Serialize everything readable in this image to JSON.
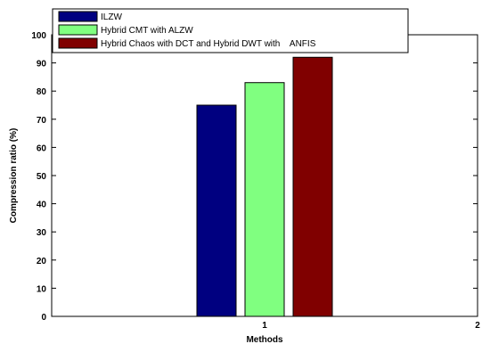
{
  "chart_data": {
    "type": "bar",
    "xlabel": "Methods",
    "ylabel": "Compression ratio (%)",
    "xlim": [
      0,
      2
    ],
    "ylim": [
      0,
      100
    ],
    "xticks": [
      "0",
      "1",
      "2"
    ],
    "yticks": [
      0,
      10,
      20,
      30,
      40,
      50,
      60,
      70,
      80,
      90,
      100
    ],
    "categories": [
      "1"
    ],
    "legend_position": "top-left",
    "series": [
      {
        "name": "ILZW",
        "values": [
          75
        ],
        "color": "#000080"
      },
      {
        "name": "Hybrid CMT with ALZW",
        "values": [
          83
        ],
        "color": "#80ff80"
      },
      {
        "name": "Hybrid Chaos with DCT and Hybrid DWT with    ANFIS",
        "values": [
          92
        ],
        "color": "#800000"
      }
    ]
  }
}
